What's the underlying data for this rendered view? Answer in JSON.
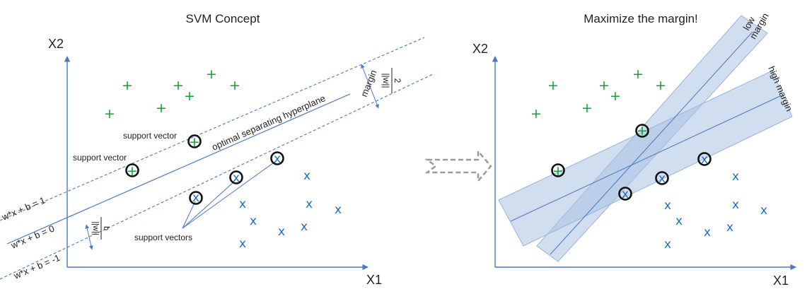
{
  "left": {
    "title": "SVM Concept",
    "x_axis": "X1",
    "y_axis": "X2",
    "support_vector_label": "support vector",
    "support_vectors_label": "support vectors",
    "hyperplane_label": "optimal separating hyperplane",
    "margin_label": "margin",
    "margin_formula_num": "2",
    "margin_formula_den": "||w||",
    "offset_formula_num": "b",
    "offset_formula_den": "||w||",
    "eq_plus": "w*x + b = 1",
    "eq_zero": "w*x + b = 0",
    "eq_minus": "w*x + b = -1",
    "plus_symbol": "+",
    "cross_symbol": "x"
  },
  "right": {
    "title": "Maximize the margin!",
    "x_axis": "X1",
    "y_axis": "X2",
    "low_margin_line1": "low",
    "low_margin_line2": "margin",
    "high_margin_label": "high margin",
    "plus_symbol": "+",
    "cross_symbol": "x"
  },
  "colors": {
    "axis": "#4a78c2",
    "positive": "#12a03a",
    "negative": "#1e6ec8",
    "band": "#a9c2e2",
    "arrow": "#9a9a9a"
  }
}
